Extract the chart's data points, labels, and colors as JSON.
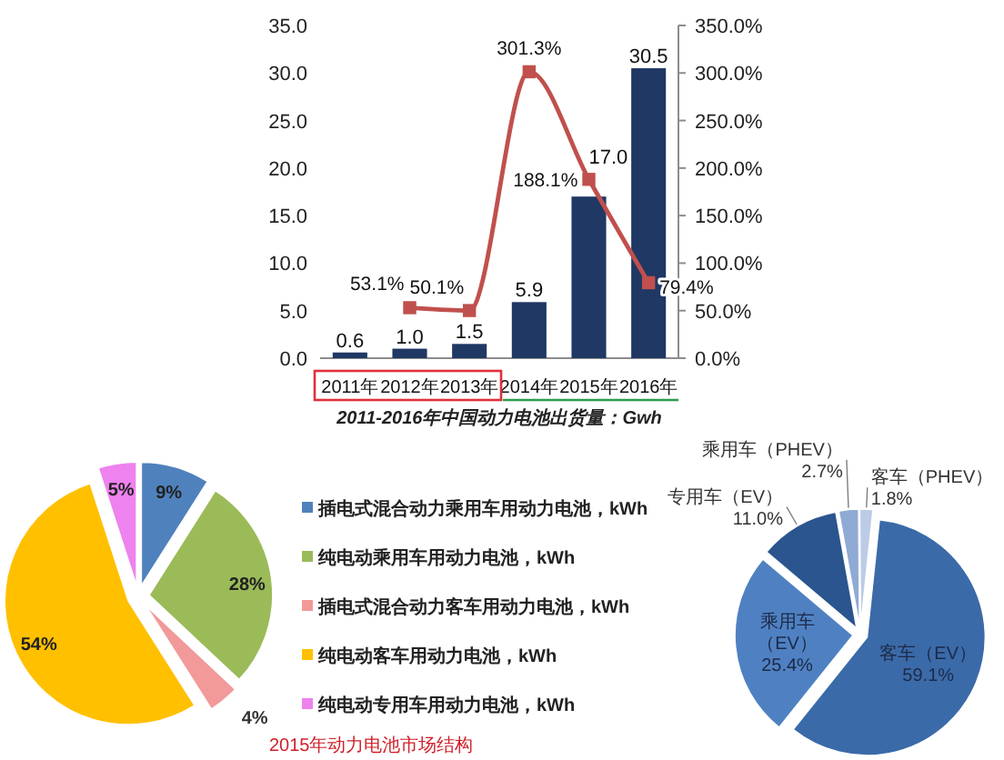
{
  "chart_data": [
    {
      "type": "bar",
      "title": "2011-2016年中国动力电池出货量：Gwh",
      "categories": [
        "2011年",
        "2012年",
        "2013年",
        "2014年",
        "2015年",
        "2016年"
      ],
      "series": [
        {
          "type": "bar",
          "color": "#1f3864",
          "values": [
            0.6,
            1.0,
            1.5,
            5.9,
            17.0,
            30.5
          ],
          "value_labels": [
            "0.6",
            "1.0",
            "1.5",
            "5.9",
            "17.0",
            "30.5"
          ]
        },
        {
          "type": "line",
          "axis": "y2",
          "color": "#c0504d",
          "values": [
            null,
            53.1,
            50.1,
            301.3,
            188.1,
            79.4
          ],
          "value_labels": [
            null,
            "53.1%",
            "50.1%",
            "301.3%",
            "188.1%",
            "79.4%"
          ]
        }
      ],
      "marker": "square",
      "ylim": [
        0,
        35
      ],
      "yticks": [
        {
          "value": 0,
          "label": "0.0"
        },
        {
          "value": 5,
          "label": "5.0"
        },
        {
          "value": 10,
          "label": "10.0"
        },
        {
          "value": 15,
          "label": "15.0"
        },
        {
          "value": 20,
          "label": "20.0"
        },
        {
          "value": 25,
          "label": "25.0"
        },
        {
          "value": 30,
          "label": "30.0"
        },
        {
          "value": 35,
          "label": "35.0"
        }
      ],
      "y2lim": [
        0,
        350
      ],
      "y2ticks": [
        {
          "value": 0,
          "label": "0.0%"
        },
        {
          "value": 50,
          "label": "50.0%"
        },
        {
          "value": 100,
          "label": "100.0%"
        },
        {
          "value": 150,
          "label": "150.0%"
        },
        {
          "value": 200,
          "label": "200.0%"
        },
        {
          "value": 250,
          "label": "250.0%"
        },
        {
          "value": 300,
          "label": "300.0%"
        },
        {
          "value": 350,
          "label": "350.0%"
        }
      ]
    },
    {
      "type": "pie",
      "categories": [
        "插电式混合动力乘用车用动力电池，kWh",
        "纯电动乘用车用动力电池，kWh",
        "插电式混合动力客车用动力电池，kWh",
        "纯电动客车用动力电池，kWh",
        "纯电动专用车用动力电池，kWh"
      ],
      "values": [
        9,
        28,
        4,
        54,
        5
      ],
      "colors": [
        "#4f81bd",
        "#9bbb59",
        "#f2999a",
        "#ffc000",
        "#ee82ee"
      ],
      "value_labels": [
        "9%",
        "28%",
        "4%",
        "54%",
        "5%"
      ],
      "legend": "right",
      "annotations": [
        "2015年动力电池市场结构"
      ]
    },
    {
      "type": "pie",
      "categories": [
        "客车（EV）",
        "乘用车（EV）",
        "专用车（EV）",
        "乘用车（PHEV）",
        "客车（PHEV）"
      ],
      "values": [
        59.1,
        25.4,
        11.0,
        2.7,
        1.8
      ],
      "colors": [
        "#3b6aa8",
        "#4f81c2",
        "#2a558f",
        "#8faad4",
        "#bccbe6"
      ],
      "value_labels": [
        "59.1%",
        "25.4%",
        "11.0%",
        "2.7%",
        "1.8%"
      ]
    }
  ]
}
